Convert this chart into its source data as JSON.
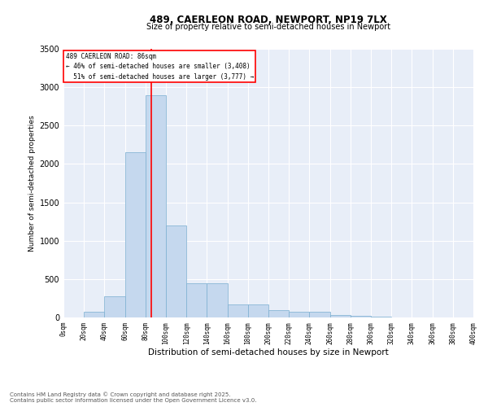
{
  "title1": "489, CAERLEON ROAD, NEWPORT, NP19 7LX",
  "title2": "Size of property relative to semi-detached houses in Newport",
  "xlabel": "Distribution of semi-detached houses by size in Newport",
  "ylabel": "Number of semi-detached properties",
  "bar_color": "#c5d8ee",
  "bar_edge_color": "#7aaed0",
  "background_color": "#e8eef8",
  "bin_edges": [
    0,
    20,
    40,
    60,
    80,
    100,
    120,
    140,
    160,
    180,
    200,
    220,
    240,
    260,
    280,
    300,
    320,
    340,
    360,
    380,
    400
  ],
  "counts": [
    0,
    75,
    275,
    2150,
    2900,
    1200,
    450,
    450,
    175,
    175,
    100,
    75,
    75,
    30,
    25,
    10,
    5,
    2,
    0,
    0
  ],
  "property_size": 86,
  "redline_label": "489 CAERLEON ROAD: 86sqm",
  "smaller_pct": 46,
  "smaller_count": 3408,
  "larger_pct": 51,
  "larger_count": 3777,
  "ylim": [
    0,
    3500
  ],
  "xlim": [
    0,
    400
  ],
  "yticks": [
    0,
    500,
    1000,
    1500,
    2000,
    2500,
    3000,
    3500
  ],
  "footnote1": "Contains HM Land Registry data © Crown copyright and database right 2025.",
  "footnote2": "Contains public sector information licensed under the Open Government Licence v3.0."
}
